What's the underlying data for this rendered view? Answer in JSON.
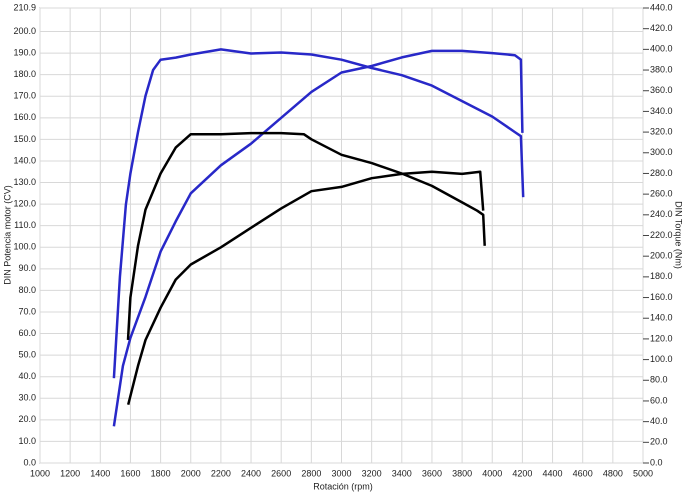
{
  "chart_data": {
    "type": "line",
    "xlabel": "Rotación (rpm)",
    "ylabel": "DIN Potencia motor (CV)",
    "y2label": "DIN Torque (Nm)",
    "xlim": [
      1000,
      5000
    ],
    "xticks": [
      1000,
      1200,
      1400,
      1600,
      1800,
      2000,
      2200,
      2400,
      2600,
      2800,
      3000,
      3200,
      3400,
      3600,
      3800,
      4000,
      4200,
      4400,
      4600,
      4800,
      5000
    ],
    "ylim": [
      0,
      210.9
    ],
    "yticks": [
      {
        "value": 0,
        "label": "0.0"
      },
      {
        "value": 10,
        "label": "10.0"
      },
      {
        "value": 20,
        "label": "20.0"
      },
      {
        "value": 30,
        "label": "30.0"
      },
      {
        "value": 40,
        "label": "40.0"
      },
      {
        "value": 50,
        "label": "50.0"
      },
      {
        "value": 60,
        "label": "60.0"
      },
      {
        "value": 70,
        "label": "70.0"
      },
      {
        "value": 80,
        "label": "80.0"
      },
      {
        "value": 90,
        "label": "90.0"
      },
      {
        "value": 100,
        "label": "100.0"
      },
      {
        "value": 110,
        "label": "110.0"
      },
      {
        "value": 120,
        "label": "120.0"
      },
      {
        "value": 130,
        "label": "130.0"
      },
      {
        "value": 140,
        "label": "140.0"
      },
      {
        "value": 150,
        "label": "150.0"
      },
      {
        "value": 160,
        "label": "160.0"
      },
      {
        "value": 170,
        "label": "170.0"
      },
      {
        "value": 180,
        "label": "180.0"
      },
      {
        "value": 190,
        "label": "190.0"
      },
      {
        "value": 200,
        "label": "200.0"
      },
      210.9
    ],
    "y2lim": [
      0,
      440
    ],
    "y2ticks": [
      {
        "value": 0,
        "label": "0.0"
      },
      {
        "value": 20,
        "label": "20.0"
      },
      {
        "value": 40,
        "label": "40.0"
      },
      {
        "value": 60,
        "label": "60.0"
      },
      {
        "value": 80,
        "label": "80.0"
      },
      {
        "value": 100,
        "label": "100.0"
      },
      {
        "value": 120,
        "label": "120.0"
      },
      {
        "value": 140,
        "label": "140.0"
      },
      {
        "value": 160,
        "label": "160.0"
      },
      {
        "value": 180,
        "label": "180.0"
      },
      {
        "value": 200,
        "label": "200.0"
      },
      {
        "value": 220,
        "label": "220.0"
      },
      {
        "value": 240,
        "label": "240.0"
      },
      {
        "value": 260,
        "label": "260.0"
      },
      {
        "value": 280,
        "label": "280.0"
      },
      {
        "value": 300,
        "label": "300.0"
      },
      {
        "value": 320,
        "label": "320.0"
      },
      {
        "value": 340,
        "label": "340.0"
      },
      {
        "value": 360,
        "label": "360.0"
      },
      {
        "value": 380,
        "label": "380.0"
      },
      {
        "value": 400,
        "label": "400.0"
      },
      {
        "value": 420,
        "label": "420.0"
      },
      {
        "value": 440,
        "label": "440.0"
      }
    ],
    "grid": true,
    "series": [
      {
        "color": "#2828c8",
        "x": [
          1490,
          1550,
          1600,
          1700,
          1800,
          1900,
          2000,
          2200,
          2400,
          2600,
          2800,
          3000,
          3200,
          3400,
          3600,
          3800,
          4000,
          4150,
          4190,
          4200
        ],
        "values": [
          17,
          45,
          58,
          77,
          98,
          112,
          125,
          138,
          148,
          160,
          172,
          181,
          184,
          188,
          191,
          191,
          190,
          189,
          187,
          153
        ]
      },
      {
        "color": "#2828c8",
        "axis": "y2",
        "x": [
          1490,
          1530,
          1570,
          1600,
          1650,
          1700,
          1750,
          1800,
          1900,
          2000,
          2200,
          2400,
          2600,
          2800,
          3000,
          3200,
          3400,
          3600,
          3800,
          4000,
          4150,
          4190,
          4205
        ],
        "values": [
          82,
          180,
          250,
          280,
          320,
          355,
          380,
          390,
          392,
          395,
          400,
          396,
          397,
          395,
          390,
          382,
          375,
          365,
          350,
          335,
          320,
          316,
          257
        ]
      },
      {
        "color": "#000000",
        "x": [
          1585,
          1650,
          1700,
          1800,
          1900,
          2000,
          2200,
          2400,
          2600,
          2800,
          3000,
          3200,
          3400,
          3600,
          3800,
          3920,
          3940
        ],
        "values": [
          27,
          45,
          57,
          72,
          85,
          92,
          100,
          109,
          118,
          126,
          128,
          132,
          134,
          135,
          134,
          135,
          117
        ]
      },
      {
        "color": "#000000",
        "axis": "y2",
        "x": [
          1584,
          1600,
          1650,
          1700,
          1800,
          1900,
          2000,
          2200,
          2400,
          2600,
          2750,
          2800,
          3000,
          3200,
          3400,
          3600,
          3800,
          3900,
          3940,
          3950
        ],
        "values": [
          119,
          160,
          210,
          245,
          280,
          305,
          318,
          318,
          319,
          319,
          318,
          313,
          298,
          290,
          280,
          268,
          252,
          244,
          240,
          210
        ]
      }
    ]
  }
}
